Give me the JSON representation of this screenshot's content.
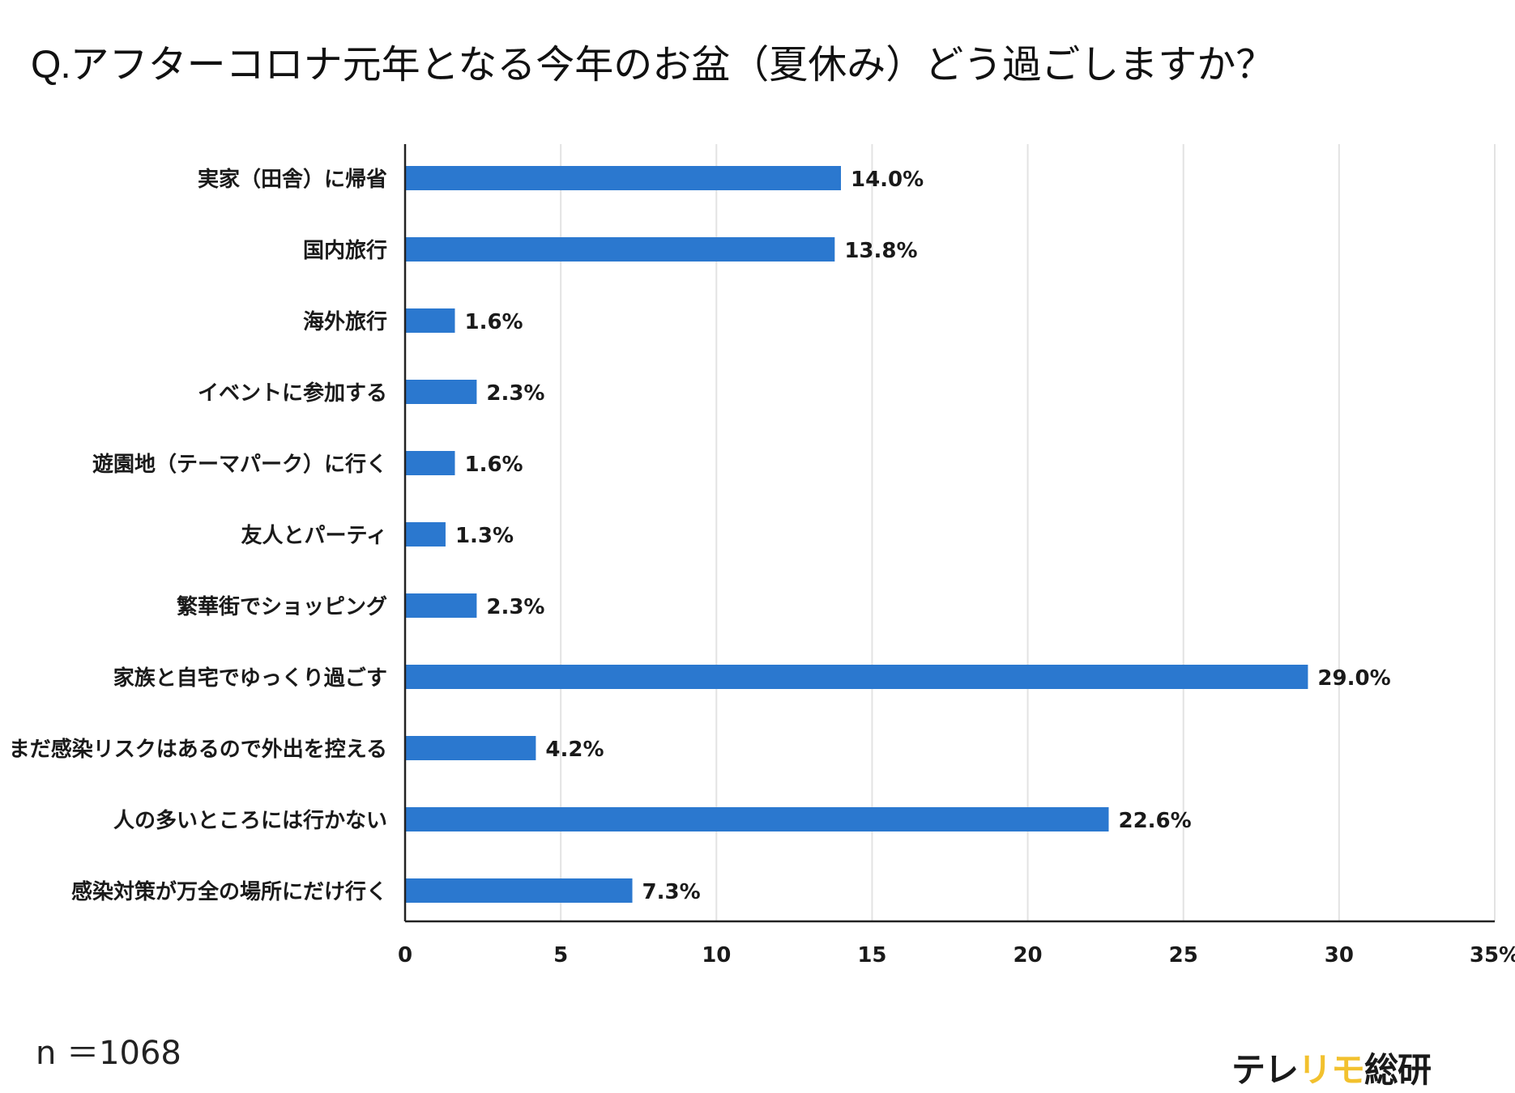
{
  "title_prefix": "Q.",
  "title": "アフターコロナ元年となる今年のお盆（夏休み）どう過ごしますか？",
  "sample_size": "n ＝1068",
  "logo": {
    "part1": "テレ",
    "part2": "リモ",
    "part3": "総研",
    "accent_color": "#f2c12e"
  },
  "colors": {
    "bar": "#2b78cf",
    "grid": "#e3e3e3",
    "axis": "#222222"
  },
  "chart_data": {
    "type": "bar",
    "orientation": "horizontal",
    "title": "アフターコロナ元年となる今年のお盆（夏休み）どう過ごしますか？",
    "xlim": [
      0,
      35
    ],
    "xticks": [
      0,
      5,
      10,
      15,
      20,
      25,
      30,
      35
    ],
    "xtick_labels": [
      "0",
      "5",
      "10",
      "15",
      "20",
      "25",
      "30",
      "35%"
    ],
    "grid": "vertical",
    "categories": [
      "実家（田舎）に帰省",
      "国内旅行",
      "海外旅行",
      "イベントに参加する",
      "遊園地（テーマパーク）に行く",
      "友人とパーティ",
      "繁華街でショッピング",
      "家族と自宅でゆっくり過ごす",
      "まだ感染リスクはあるので外出を控える",
      "人の多いところには行かない",
      "感染対策が万全の場所にだけ行く"
    ],
    "values": [
      14.0,
      13.8,
      1.6,
      2.3,
      1.6,
      1.3,
      2.3,
      29.0,
      4.2,
      22.6,
      7.3
    ],
    "value_labels": [
      "14.0%",
      "13.8%",
      "1.6%",
      "2.3%",
      "1.6%",
      "1.3%",
      "2.3%",
      "29.0%",
      "4.2%",
      "22.6%",
      "7.3%"
    ]
  }
}
